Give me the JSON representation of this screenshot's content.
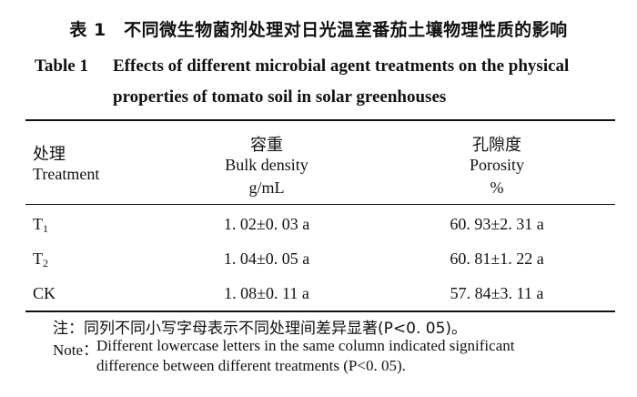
{
  "table": {
    "title_cn": "表 1　不同微生物菌剂处理对日光温室番茄土壤物理性质的影响",
    "title_en_label": "Table 1",
    "title_en_line1": "Effects of different microbial agent treatments on the physical",
    "title_en_line2": "properties of tomato soil in solar greenhouses",
    "headers": {
      "col1_cn": "处理",
      "col1_en": "Treatment",
      "col2_cn": "容重",
      "col2_en": "Bulk density",
      "col2_unit": "g/mL",
      "col3_cn": "孔隙度",
      "col3_en": "Porosity",
      "col3_unit": "%"
    },
    "rows": [
      {
        "treatment": "T",
        "sub": "1",
        "bulk_density": "1. 02±0. 03  a",
        "porosity": "60. 93±2. 31  a"
      },
      {
        "treatment": "T",
        "sub": "2",
        "bulk_density": "1. 04±0. 05  a",
        "porosity": "60. 81±1. 22  a"
      },
      {
        "treatment": "CK",
        "sub": "",
        "bulk_density": "1. 08±0. 11  a",
        "porosity": "57. 84±3. 11  a"
      }
    ],
    "note_cn": "注：同列不同小写字母表示不同处理间差异显著(P<0. 05)。",
    "note_en_label": "Note：",
    "note_en_line1": "Different lowercase letters in the same column indicated significant",
    "note_en_line2": "difference between different treatments (P<0. 05)."
  }
}
